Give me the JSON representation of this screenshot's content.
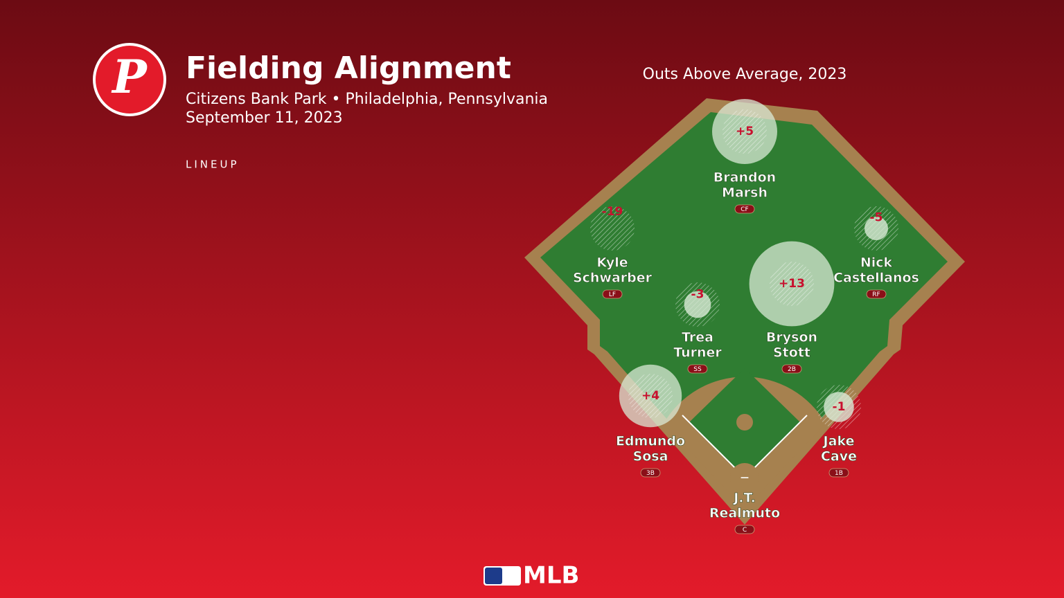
{
  "header": {
    "logo": "P",
    "title": "Fielding Alignment",
    "subtitle": "Citizens Bank Park • Philadelphia, Pennsylvania",
    "date": "September 11, 2023",
    "section": "LINEUP"
  },
  "field": {
    "title": "Outs Above Average, 2023",
    "players": [
      {
        "name": [
          "Brandon",
          "Marsh"
        ],
        "position": "CF",
        "oaa": 5,
        "oaa_label": "+5"
      },
      {
        "name": [
          "Kyle",
          "Schwarber"
        ],
        "position": "LF",
        "oaa": -19,
        "oaa_label": "-19"
      },
      {
        "name": [
          "Nick",
          "Castellanos"
        ],
        "position": "RF",
        "oaa": -5,
        "oaa_label": "-5"
      },
      {
        "name": [
          "Trea",
          "Turner"
        ],
        "position": "SS",
        "oaa": -3,
        "oaa_label": "-3"
      },
      {
        "name": [
          "Bryson",
          "Stott"
        ],
        "position": "2B",
        "oaa": 13,
        "oaa_label": "+13"
      },
      {
        "name": [
          "Edmundo",
          "Sosa"
        ],
        "position": "3B",
        "oaa": 4,
        "oaa_label": "+4"
      },
      {
        "name": [
          "Jake",
          "Cave"
        ],
        "position": "1B",
        "oaa": -1,
        "oaa_label": "-1"
      },
      {
        "name": [
          "J.T.",
          "Realmuto"
        ],
        "position": "C",
        "oaa": null,
        "oaa_label": "—"
      }
    ]
  },
  "footer": {
    "brand": "MLB"
  }
}
